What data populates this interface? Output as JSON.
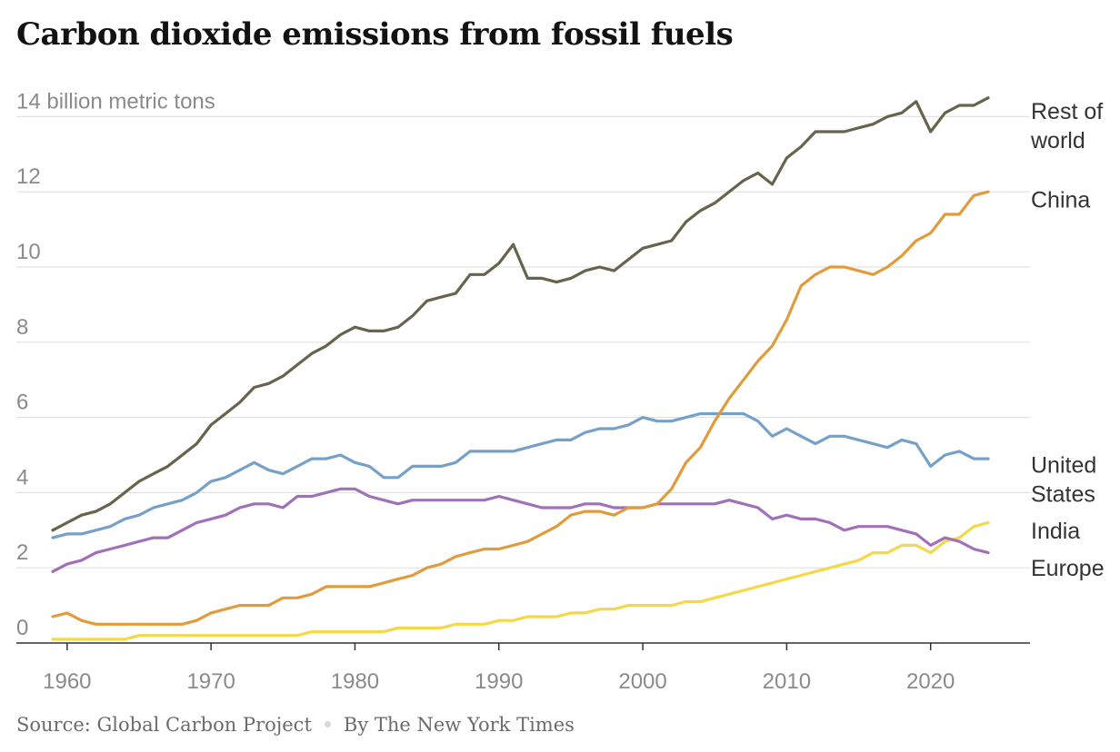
{
  "title": "Carbon dioxide emissions from fossil fuels",
  "footer": {
    "source": "Source: Global Carbon Project",
    "byline": "By The New York Times"
  },
  "chart_data": {
    "type": "line",
    "title": "Carbon dioxide emissions from fossil fuels",
    "ylabel": "billion metric tons",
    "y_top_tick_label": "14 billion metric tons",
    "ylim": [
      0,
      14.5
    ],
    "xlim": [
      1959,
      2024
    ],
    "y_ticks": [
      0,
      2,
      4,
      6,
      8,
      10,
      12,
      14
    ],
    "x_ticks": [
      1960,
      1970,
      1980,
      1990,
      2000,
      2010,
      2020
    ],
    "grid": "horizontal",
    "legend": "direct labels at line ends (right)",
    "x": [
      1959,
      1960,
      1961,
      1962,
      1963,
      1964,
      1965,
      1966,
      1967,
      1968,
      1969,
      1970,
      1971,
      1972,
      1973,
      1974,
      1975,
      1976,
      1977,
      1978,
      1979,
      1980,
      1981,
      1982,
      1983,
      1984,
      1985,
      1986,
      1987,
      1988,
      1989,
      1990,
      1991,
      1992,
      1993,
      1994,
      1995,
      1996,
      1997,
      1998,
      1999,
      2000,
      2001,
      2002,
      2003,
      2004,
      2005,
      2006,
      2007,
      2008,
      2009,
      2010,
      2011,
      2012,
      2013,
      2014,
      2015,
      2016,
      2017,
      2018,
      2019,
      2020,
      2021,
      2022,
      2023,
      2024
    ],
    "series": [
      {
        "name": "Rest of world",
        "label_lines": [
          "Rest of",
          "world"
        ],
        "color": "#66644c",
        "values": [
          3.0,
          3.2,
          3.4,
          3.5,
          3.7,
          4.0,
          4.3,
          4.5,
          4.7,
          5.0,
          5.3,
          5.8,
          6.1,
          6.4,
          6.8,
          6.9,
          7.1,
          7.4,
          7.7,
          7.9,
          8.2,
          8.4,
          8.3,
          8.3,
          8.4,
          8.7,
          9.1,
          9.2,
          9.3,
          9.8,
          9.8,
          10.1,
          10.6,
          9.7,
          9.7,
          9.6,
          9.7,
          9.9,
          10.0,
          9.9,
          10.2,
          10.5,
          10.6,
          10.7,
          11.2,
          11.5,
          11.7,
          12.0,
          12.3,
          12.5,
          12.2,
          12.9,
          13.2,
          13.6,
          13.6,
          13.6,
          13.7,
          13.8,
          14.0,
          14.1,
          14.4,
          13.6,
          14.1,
          14.3,
          14.3,
          14.5
        ]
      },
      {
        "name": "China",
        "label_lines": [
          "China"
        ],
        "color": "#e09c3c",
        "values": [
          0.7,
          0.8,
          0.6,
          0.5,
          0.5,
          0.5,
          0.5,
          0.5,
          0.5,
          0.5,
          0.6,
          0.8,
          0.9,
          1.0,
          1.0,
          1.0,
          1.2,
          1.2,
          1.3,
          1.5,
          1.5,
          1.5,
          1.5,
          1.6,
          1.7,
          1.8,
          2.0,
          2.1,
          2.3,
          2.4,
          2.5,
          2.5,
          2.6,
          2.7,
          2.9,
          3.1,
          3.4,
          3.5,
          3.5,
          3.4,
          3.6,
          3.6,
          3.7,
          4.1,
          4.8,
          5.2,
          5.9,
          6.5,
          7.0,
          7.5,
          7.9,
          8.6,
          9.5,
          9.8,
          10.0,
          10.0,
          9.9,
          9.8,
          10.0,
          10.3,
          10.7,
          10.9,
          11.4,
          11.4,
          11.9,
          12.0
        ]
      },
      {
        "name": "United States",
        "label_lines": [
          "United",
          "States"
        ],
        "color": "#77a0c8",
        "values": [
          2.8,
          2.9,
          2.9,
          3.0,
          3.1,
          3.3,
          3.4,
          3.6,
          3.7,
          3.8,
          4.0,
          4.3,
          4.4,
          4.6,
          4.8,
          4.6,
          4.5,
          4.7,
          4.9,
          4.9,
          5.0,
          4.8,
          4.7,
          4.4,
          4.4,
          4.7,
          4.7,
          4.7,
          4.8,
          5.1,
          5.1,
          5.1,
          5.1,
          5.2,
          5.3,
          5.4,
          5.4,
          5.6,
          5.7,
          5.7,
          5.8,
          6.0,
          5.9,
          5.9,
          6.0,
          6.1,
          6.1,
          6.1,
          6.1,
          5.9,
          5.5,
          5.7,
          5.5,
          5.3,
          5.5,
          5.5,
          5.4,
          5.3,
          5.2,
          5.4,
          5.3,
          4.7,
          5.0,
          5.1,
          4.9,
          4.9
        ]
      },
      {
        "name": "India",
        "label_lines": [
          "India"
        ],
        "color": "#f5d848",
        "values": [
          0.1,
          0.1,
          0.1,
          0.1,
          0.1,
          0.1,
          0.2,
          0.2,
          0.2,
          0.2,
          0.2,
          0.2,
          0.2,
          0.2,
          0.2,
          0.2,
          0.2,
          0.2,
          0.3,
          0.3,
          0.3,
          0.3,
          0.3,
          0.3,
          0.4,
          0.4,
          0.4,
          0.4,
          0.5,
          0.5,
          0.5,
          0.6,
          0.6,
          0.7,
          0.7,
          0.7,
          0.8,
          0.8,
          0.9,
          0.9,
          1.0,
          1.0,
          1.0,
          1.0,
          1.1,
          1.1,
          1.2,
          1.3,
          1.4,
          1.5,
          1.6,
          1.7,
          1.8,
          1.9,
          2.0,
          2.1,
          2.2,
          2.4,
          2.4,
          2.6,
          2.6,
          2.4,
          2.7,
          2.8,
          3.1,
          3.2
        ]
      },
      {
        "name": "Europe",
        "label_lines": [
          "Europe"
        ],
        "color": "#a070b8",
        "values": [
          1.9,
          2.1,
          2.2,
          2.4,
          2.5,
          2.6,
          2.7,
          2.8,
          2.8,
          3.0,
          3.2,
          3.3,
          3.4,
          3.6,
          3.7,
          3.7,
          3.6,
          3.9,
          3.9,
          4.0,
          4.1,
          4.1,
          3.9,
          3.8,
          3.7,
          3.8,
          3.8,
          3.8,
          3.8,
          3.8,
          3.8,
          3.9,
          3.8,
          3.7,
          3.6,
          3.6,
          3.6,
          3.7,
          3.7,
          3.6,
          3.6,
          3.6,
          3.7,
          3.7,
          3.7,
          3.7,
          3.7,
          3.8,
          3.7,
          3.6,
          3.3,
          3.4,
          3.3,
          3.3,
          3.2,
          3.0,
          3.1,
          3.1,
          3.1,
          3.0,
          2.9,
          2.6,
          2.8,
          2.7,
          2.5,
          2.4
        ]
      }
    ]
  }
}
